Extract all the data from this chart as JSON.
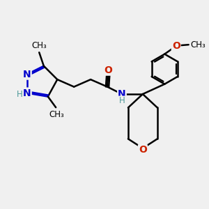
{
  "background_color": "#f0f0f0",
  "bond_color": "#000000",
  "nitrogen_color": "#0000cc",
  "oxygen_color": "#cc2200",
  "nh_color": "#4d9999",
  "line_width": 1.8,
  "fig_width": 3.0,
  "fig_height": 3.0,
  "dpi": 100,
  "xlim": [
    0,
    10
  ],
  "ylim": [
    0,
    10
  ],
  "font_size_atom": 10,
  "font_size_small": 8.5,
  "methyl_font_size": 8.5
}
